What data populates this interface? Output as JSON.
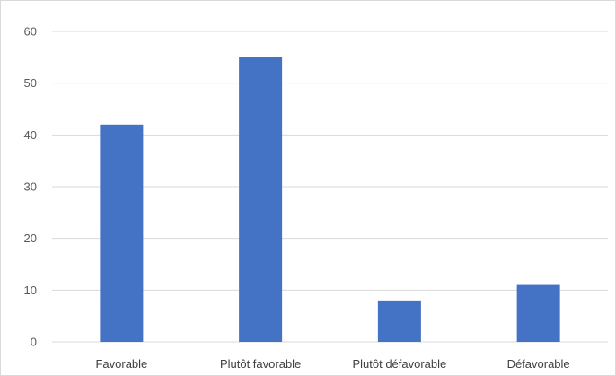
{
  "chart_data": {
    "type": "bar",
    "title": "",
    "xlabel": "",
    "ylabel": "",
    "categories": [
      "Favorable",
      "Plutôt favorable",
      "Plutôt défavorable",
      "Défavorable"
    ],
    "values": [
      42,
      55,
      8,
      11
    ],
    "ylim": [
      0,
      60
    ],
    "yticks": [
      "0",
      "10",
      "20",
      "30",
      "40",
      "50",
      "60"
    ],
    "grid": true,
    "legend": "none",
    "bar_color": "#4472C4",
    "gridline_color": "#D9D9D9"
  }
}
